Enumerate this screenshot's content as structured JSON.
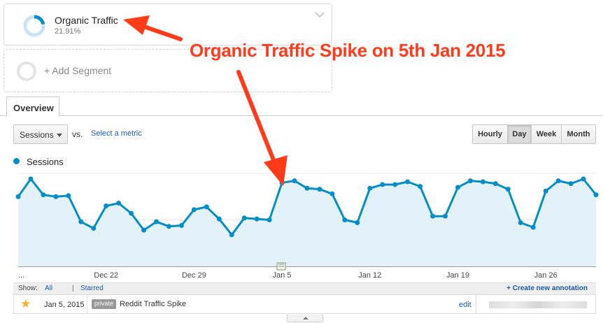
{
  "segments": {
    "primary": {
      "title": "Organic Traffic",
      "percent": "21.91%",
      "share": 0.2191
    },
    "add_label": "+ Add Segment"
  },
  "tabs": {
    "overview": "Overview"
  },
  "controls": {
    "metric_select": "Sessions",
    "vs_label": "vs.",
    "select_metric_link": "Select a metric",
    "periods": [
      "Hourly",
      "Day",
      "Week",
      "Month"
    ],
    "active_period": "Day"
  },
  "legend": {
    "series_name": "Sessions"
  },
  "chart_data": {
    "type": "area",
    "title": "",
    "xlabel": "",
    "ylabel": "",
    "series": [
      {
        "name": "Sessions",
        "color": "#058dc7",
        "values": [
          75,
          94,
          77,
          75,
          76,
          48,
          41,
          65,
          68,
          57,
          39,
          48,
          43,
          44,
          61,
          64,
          51,
          34,
          52,
          51,
          50,
          90,
          92,
          84,
          83,
          78,
          50,
          47,
          84,
          88,
          88,
          91,
          86,
          54,
          54,
          85,
          92,
          91,
          89,
          83,
          47,
          42,
          81,
          92,
          89,
          94,
          77
        ]
      }
    ],
    "x_tick_labels": [
      {
        "index": 0,
        "label": "..."
      },
      {
        "index": 7,
        "label": "Dec 22"
      },
      {
        "index": 14,
        "label": "Dec 29"
      },
      {
        "index": 21,
        "label": "Jan 5"
      },
      {
        "index": 28,
        "label": "Jan 12"
      },
      {
        "index": 35,
        "label": "Jan 19"
      },
      {
        "index": 42,
        "label": "Jan 26"
      }
    ],
    "annotation_marker_index": 21,
    "grid": true,
    "legend": "top-left"
  },
  "annotations": {
    "show_label": "Show:",
    "all_link": "All",
    "separator": "|",
    "starred_link": "Starred",
    "create_link": "+ Create new annotation",
    "rows": [
      {
        "date": "Jan 5, 2015",
        "visibility": "private",
        "text": "Reddit Traffic Spike",
        "edit": "edit"
      }
    ]
  },
  "callout": {
    "text": "Organic Traffic Spike on 5th Jan 2015",
    "color": "#ff3b1a"
  }
}
